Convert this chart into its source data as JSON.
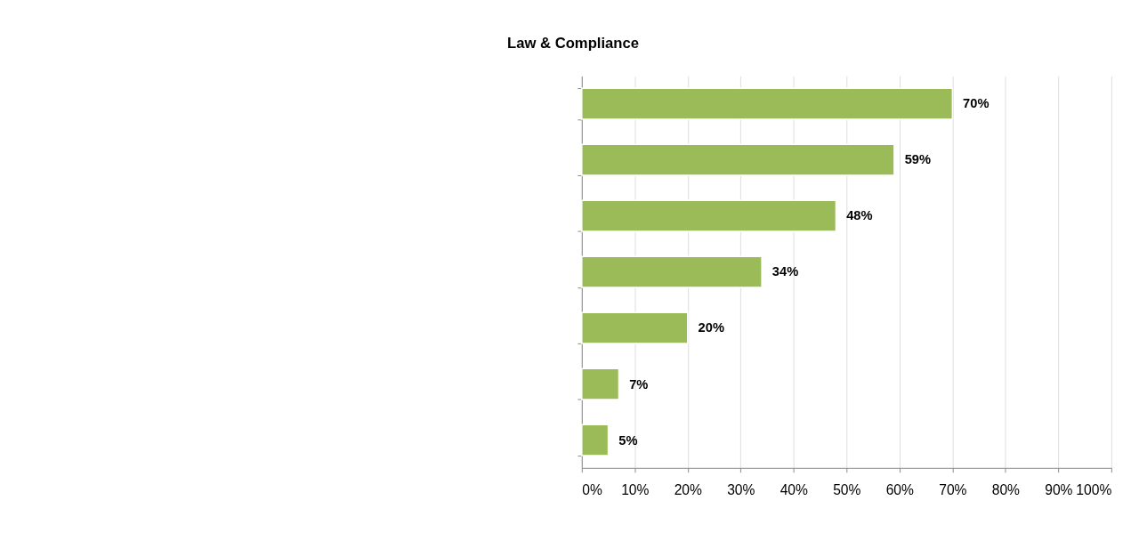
{
  "chart_data": {
    "type": "bar",
    "orientation": "horizontal",
    "title": "Law & Compliance",
    "categories": [
      null,
      null,
      null,
      null,
      null,
      null,
      null
    ],
    "values": [
      70,
      59,
      48,
      34,
      20,
      7,
      5
    ],
    "value_labels": [
      "70%",
      "59%",
      "48%",
      "34%",
      "20%",
      "7%",
      "5%"
    ],
    "color": "#9bbb59",
    "xlim": [
      0,
      100
    ],
    "xticks": [
      {
        "value": 0,
        "label": "0%"
      },
      {
        "value": 10,
        "label": "10%"
      },
      {
        "value": 20,
        "label": "20%"
      },
      {
        "value": 30,
        "label": "30%"
      },
      {
        "value": 40,
        "label": "40%"
      },
      {
        "value": 50,
        "label": "50%"
      },
      {
        "value": 60,
        "label": "60%"
      },
      {
        "value": 70,
        "label": "70%"
      },
      {
        "value": 80,
        "label": "80%"
      },
      {
        "value": 90,
        "label": "90%"
      },
      {
        "value": 100,
        "label": "100%"
      }
    ],
    "grid": "x",
    "tick_labels": "x"
  }
}
